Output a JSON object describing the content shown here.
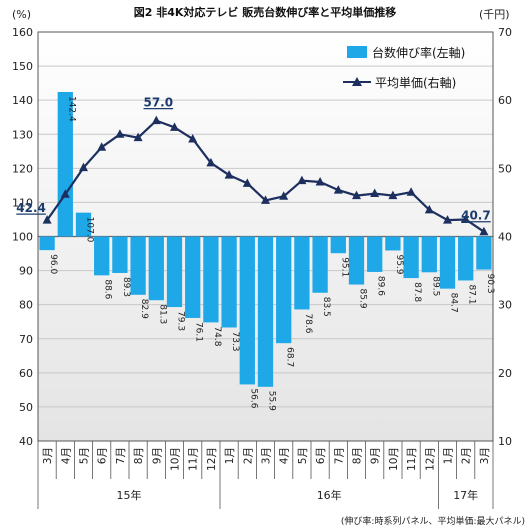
{
  "chart_data": {
    "type": "bar+line",
    "title": "図2 非4K対応テレビ 販売台数伸び率と平均単価推移",
    "y_left_unit": "(%)",
    "y_right_unit": "(千円)",
    "y_left": {
      "min": 40,
      "max": 160,
      "ticks": [
        "40",
        "50",
        "60",
        "70",
        "80",
        "90",
        "100",
        "110",
        "120",
        "130",
        "140",
        "150",
        "160"
      ]
    },
    "y_right": {
      "min": 10,
      "max": 70,
      "ticks": [
        "10",
        "20",
        "30",
        "40",
        "50",
        "60",
        "70"
      ]
    },
    "categories": [
      "3月",
      "4月",
      "5月",
      "6月",
      "7月",
      "8月",
      "9月",
      "10月",
      "11月",
      "12月",
      "1月",
      "2月",
      "3月",
      "4月",
      "5月",
      "6月",
      "7月",
      "8月",
      "9月",
      "10月",
      "11月",
      "12月",
      "1月",
      "2月",
      "3月"
    ],
    "year_labels": [
      {
        "label": "15年",
        "start": 0,
        "end": 9
      },
      {
        "label": "16年",
        "start": 10,
        "end": 21
      },
      {
        "label": "17年",
        "start": 22,
        "end": 24
      }
    ],
    "series": [
      {
        "name": "台数伸び率(左軸)",
        "type": "bar",
        "axis": "left",
        "color": "#1fa8e8",
        "values": [
          96.0,
          142.4,
          107.0,
          88.6,
          89.3,
          82.9,
          81.3,
          79.3,
          76.1,
          74.8,
          73.3,
          56.6,
          55.9,
          68.7,
          78.6,
          83.5,
          95.1,
          85.9,
          89.6,
          95.9,
          87.8,
          89.5,
          84.7,
          87.1,
          90.3
        ],
        "labels": [
          "96.0",
          "142.4",
          "107.0",
          "88.6",
          "89.3",
          "82.9",
          "81.3",
          "79.3",
          "76.1",
          "74.8",
          "73.3",
          "56.6",
          "55.9",
          "68.7",
          "78.6",
          "83.5",
          "95.1",
          "85.9",
          "89.6",
          "95.9",
          "87.8",
          "89.5",
          "84.7",
          "87.1",
          "90.3"
        ]
      },
      {
        "name": "平均単価(右軸)",
        "type": "line",
        "axis": "right",
        "color": "#1d2f5e",
        "values": [
          42.4,
          46.2,
          50.1,
          53.1,
          55.0,
          54.5,
          57.0,
          56.0,
          54.3,
          50.8,
          49.0,
          47.8,
          45.3,
          45.9,
          48.2,
          48.0,
          46.8,
          46.0,
          46.3,
          46.0,
          46.5,
          43.9,
          42.4,
          42.5,
          40.7
        ],
        "callouts": [
          {
            "index": 0,
            "label": "42.4"
          },
          {
            "index": 6,
            "label": "57.0"
          },
          {
            "index": 24,
            "label": "40.7"
          }
        ]
      }
    ],
    "reference_line": {
      "axis": "left",
      "value": 100
    },
    "legend": {
      "placement": "top-right"
    },
    "footnote": "(伸び率:時系列パネル、平均単価:最大パネル)"
  },
  "legend": {
    "bar_label": "台数伸び率(左軸)",
    "line_label": "平均単価(右軸)"
  }
}
